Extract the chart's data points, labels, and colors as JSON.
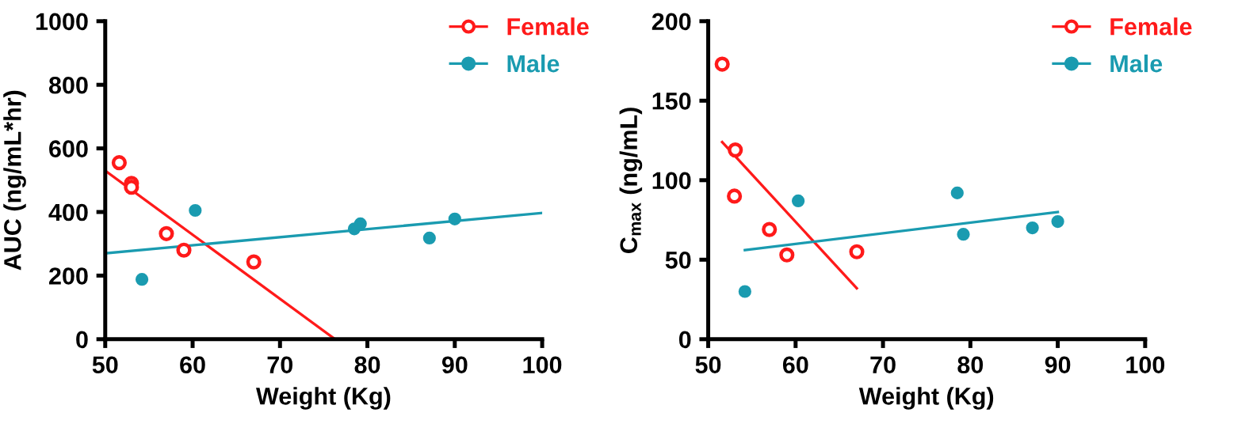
{
  "chart_data": [
    {
      "type": "scatter",
      "xlabel": "Weight (Kg)",
      "ylabel": "AUC (ng/mL*hr)",
      "xlim": [
        50,
        100
      ],
      "xticks": [
        50,
        60,
        70,
        80,
        90,
        100
      ],
      "ylim": [
        0,
        1000
      ],
      "yticks": [
        0,
        200,
        400,
        600,
        800,
        1000
      ],
      "grid": false,
      "legend": "top right",
      "series": [
        {
          "name": "Female",
          "color": "#ff1a1a",
          "marker": "circle",
          "x": [
            51.6,
            53,
            53,
            57,
            59,
            67
          ],
          "values": [
            555,
            490,
            478,
            332,
            280,
            243
          ]
        },
        {
          "type": "line",
          "color": "#ff1a1a",
          "x": [
            50,
            76.3
          ],
          "values": [
            530,
            0
          ]
        },
        {
          "name": "Male",
          "color": "#1a9bb0",
          "marker": "circle",
          "x": [
            54.2,
            60.3,
            78.5,
            79.2,
            87.1,
            90
          ],
          "values": [
            188,
            405,
            347,
            363,
            318,
            378
          ]
        },
        {
          "type": "line",
          "color": "#1a9bb0",
          "x": [
            50,
            100
          ],
          "values": [
            270,
            397
          ]
        }
      ]
    },
    {
      "type": "scatter",
      "xlabel": "Weight (Kg)",
      "ylabel": "C$_{max}$ (ng/mL)",
      "xlim": [
        50,
        100
      ],
      "xticks": [
        50,
        60,
        70,
        80,
        90,
        100
      ],
      "ylim": [
        0,
        200
      ],
      "yticks": [
        0,
        50,
        100,
        150,
        200
      ],
      "grid": false,
      "legend": "top right",
      "series": [
        {
          "name": "Female",
          "color": "#ff1a1a",
          "marker": "circle",
          "x": [
            51.6,
            53.1,
            53,
            57,
            59,
            67
          ],
          "values": [
            173,
            119,
            90,
            69,
            53,
            55
          ]
        },
        {
          "type": "line",
          "color": "#ff1a1a",
          "x": [
            51.6,
            67
          ],
          "values": [
            124,
            32
          ]
        },
        {
          "name": "Male",
          "color": "#1a9bb0",
          "marker": "circle",
          "x": [
            54.2,
            60.3,
            78.5,
            79.2,
            87.1,
            90
          ],
          "values": [
            30,
            87,
            92,
            66,
            70,
            74
          ]
        },
        {
          "type": "line",
          "color": "#1a9bb0",
          "x": [
            54.2,
            90
          ],
          "values": [
            56,
            80
          ]
        }
      ]
    }
  ]
}
